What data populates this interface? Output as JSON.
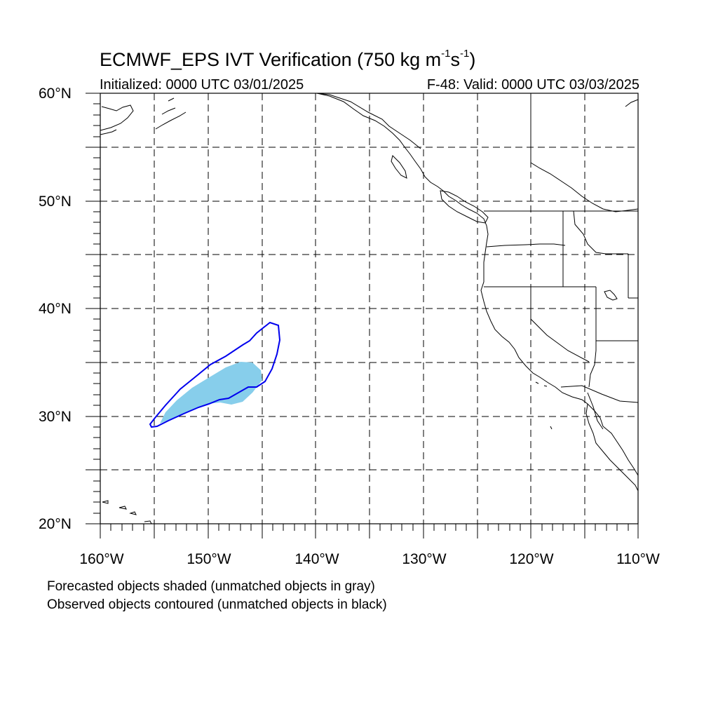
{
  "title": {
    "main": "ECMWF_EPS IVT Verification (750 kg m",
    "sup1": "-1",
    "mid": "s",
    "sup2": "-1",
    "end": ")"
  },
  "subtitle": {
    "initialized": "Initialized: 0000 UTC 03/01/2025",
    "valid": "F-48: Valid: 0000 UTC 03/03/2025"
  },
  "axes": {
    "lat_labels": [
      "60°N",
      "50°N",
      "40°N",
      "30°N",
      "20°N"
    ],
    "lon_labels": [
      "160°W",
      "150°W",
      "140°W",
      "130°W",
      "120°W",
      "110°W"
    ]
  },
  "footnotes": {
    "line1": "Forecasted objects shaded (unmatched objects in gray)",
    "line2": "Observed objects contoured (unmatched objects in black)"
  },
  "colors": {
    "forecast_fill": "#87ceeb",
    "observed_contour": "#0000ee",
    "coastline": "#000000",
    "grid": "#000000"
  }
}
